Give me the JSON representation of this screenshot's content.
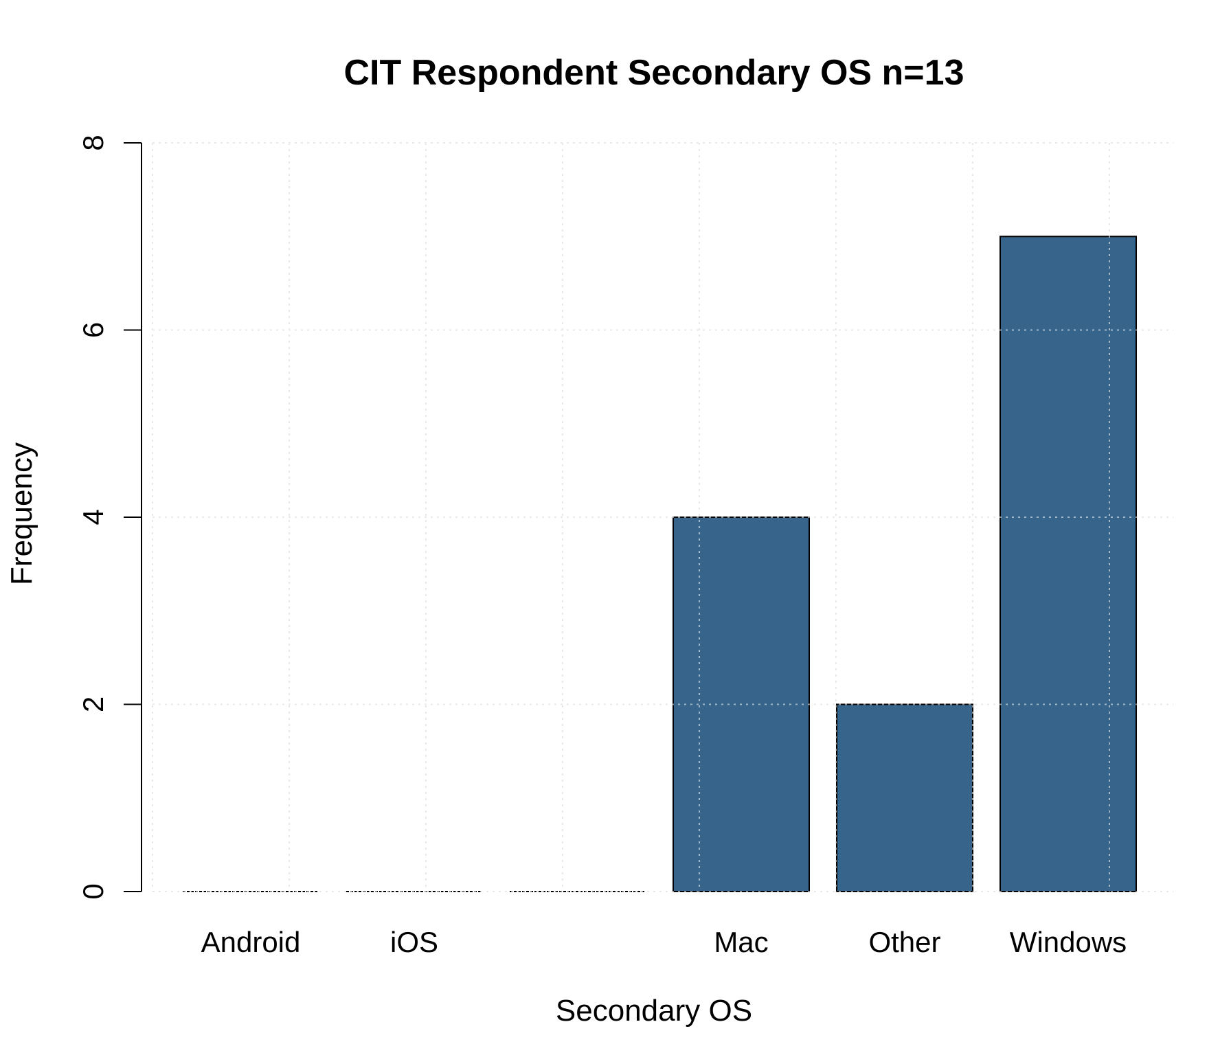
{
  "chart_data": {
    "type": "bar",
    "title": "CIT Respondent Secondary OS n=13",
    "xlabel": "Secondary OS",
    "ylabel": "Frequency",
    "categories": [
      "Android",
      "iOS",
      "",
      "Mac",
      "Other",
      "Windows"
    ],
    "values": [
      0,
      0,
      0,
      4,
      2,
      7
    ],
    "ylim": [
      0,
      8
    ],
    "yticks": [
      0,
      2,
      4,
      6,
      8
    ],
    "grid": true,
    "bar_color": "#36648b"
  }
}
